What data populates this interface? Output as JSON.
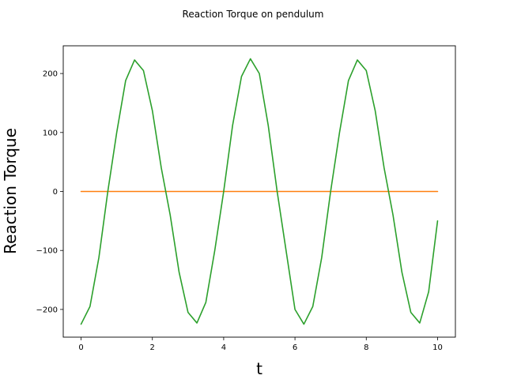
{
  "chart_data": {
    "type": "line",
    "title": "Reaction Torque on pendulum",
    "xlabel": "t",
    "ylabel": "Reaction Torque",
    "xlim": [
      -0.5,
      10.5
    ],
    "ylim": [
      -247,
      247
    ],
    "xticks": [
      0,
      2,
      4,
      6,
      8,
      10
    ],
    "yticks": [
      -200,
      -100,
      0,
      100,
      200
    ],
    "xtick_labels": [
      "0",
      "2",
      "4",
      "6",
      "8",
      "10"
    ],
    "ytick_labels": [
      "−200",
      "−100",
      "0",
      "100",
      "200"
    ],
    "grid": false,
    "series": [
      {
        "color": "#ff7f0e",
        "x": [
          0,
          1,
          2,
          3,
          4,
          5,
          6,
          7,
          8,
          9,
          10
        ],
        "y": [
          0,
          0,
          0,
          0,
          0,
          0,
          0,
          0,
          0,
          0,
          0
        ]
      },
      {
        "color": "#2ca02c",
        "x": [
          0,
          0.25,
          0.5,
          0.75,
          1.0,
          1.25,
          1.5,
          1.75,
          2.0,
          2.25,
          2.5,
          2.75,
          3.0,
          3.25,
          3.5,
          3.75,
          4.0,
          4.25,
          4.5,
          4.75,
          5.0,
          5.25,
          5.5,
          5.75,
          6.0,
          6.25,
          6.5,
          6.75,
          7.0,
          7.25,
          7.5,
          7.75,
          8.0,
          8.25,
          8.5,
          8.75,
          9.0,
          9.25,
          9.5,
          9.75,
          10.0
        ],
        "y": [
          -225,
          -195,
          -112,
          0,
          100,
          188,
          223,
          205,
          137,
          40,
          -40,
          -137,
          -205,
          -223,
          -188,
          -100,
          0,
          112,
          195,
          225,
          200,
          112,
          0,
          -100,
          -200,
          -225,
          -195,
          -112,
          0,
          100,
          188,
          223,
          205,
          137,
          40,
          -40,
          -137,
          -205,
          -223,
          -170,
          -50
        ]
      }
    ]
  }
}
